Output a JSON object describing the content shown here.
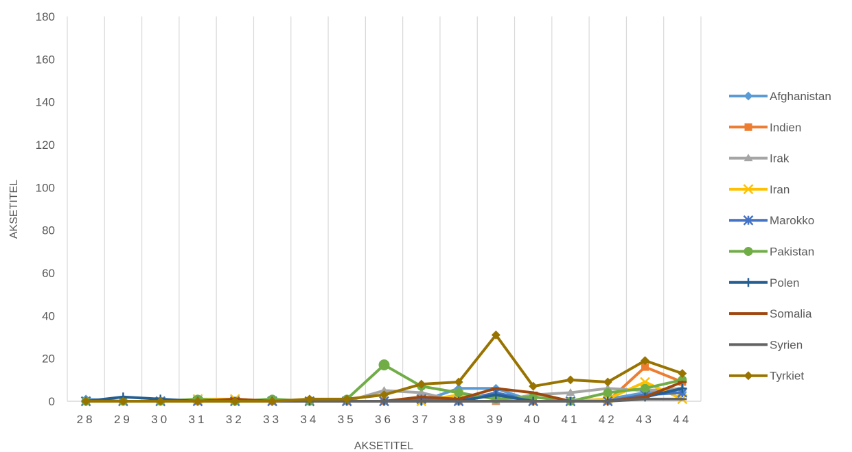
{
  "chart_data": {
    "type": "line",
    "xlabel": "AKSETITEL",
    "ylabel": "AKSETITEL",
    "ylim": [
      0,
      180
    ],
    "yticks": [
      "0",
      "20",
      "40",
      "60",
      "80",
      "100",
      "120",
      "140",
      "160",
      "180"
    ],
    "categories": [
      "28",
      "29",
      "30",
      "31",
      "32",
      "33",
      "34",
      "35",
      "36",
      "37",
      "38",
      "39",
      "40",
      "41",
      "42",
      "43",
      "44"
    ],
    "grid": "vertical",
    "legend_position": "right",
    "series": [
      {
        "name": "Afghanistan",
        "color": "#5B9BD5",
        "marker": "diamond",
        "values": [
          1,
          0,
          0,
          0,
          0,
          0,
          0,
          0,
          0,
          0,
          6,
          6,
          0,
          0,
          1,
          4,
          4
        ]
      },
      {
        "name": "Indien",
        "color": "#ED7D31",
        "marker": "square",
        "values": [
          0,
          0,
          0,
          0,
          0,
          0,
          0,
          0,
          0,
          1,
          0,
          0,
          0,
          0,
          0,
          16,
          9
        ]
      },
      {
        "name": "Irak",
        "color": "#A5A5A5",
        "marker": "triangle",
        "values": [
          0,
          0,
          0,
          0,
          0,
          0,
          0,
          0,
          5,
          4,
          0,
          0,
          3,
          4,
          6,
          5,
          6
        ]
      },
      {
        "name": "Iran",
        "color": "#FFC000",
        "marker": "x",
        "values": [
          0,
          0,
          0,
          1,
          1,
          0,
          0,
          0,
          0,
          0,
          3,
          2,
          0,
          0,
          1,
          9,
          1
        ]
      },
      {
        "name": "Marokko",
        "color": "#4472C4",
        "marker": "star",
        "values": [
          0,
          0,
          0,
          0,
          0,
          0,
          0,
          0,
          0,
          1,
          0,
          4,
          0,
          0,
          0,
          3,
          4
        ]
      },
      {
        "name": "Pakistan",
        "color": "#70AD47",
        "marker": "circle",
        "values": [
          0,
          0,
          0,
          1,
          0,
          1,
          0,
          1,
          17,
          7,
          4,
          1,
          2,
          0,
          4,
          6,
          10
        ]
      },
      {
        "name": "Polen",
        "color": "#255E91",
        "marker": "plus",
        "values": [
          0,
          2,
          1,
          0,
          0,
          0,
          0,
          0,
          0,
          0,
          0,
          3,
          0,
          0,
          0,
          2,
          6
        ]
      },
      {
        "name": "Somalia",
        "color": "#9E480E",
        "marker": "dash",
        "values": [
          0,
          0,
          0,
          0,
          1,
          0,
          0,
          0,
          0,
          2,
          1,
          6,
          4,
          0,
          0,
          2,
          9
        ]
      },
      {
        "name": "Syrien",
        "color": "#636363",
        "marker": "dash",
        "values": [
          0,
          0,
          0,
          0,
          0,
          0,
          0,
          0,
          0,
          0,
          0,
          0,
          0,
          0,
          0,
          1,
          1
        ]
      },
      {
        "name": "Tyrkiet",
        "color": "#997300",
        "marker": "diamond",
        "values": [
          0,
          0,
          0,
          0,
          0,
          0,
          1,
          1,
          3,
          8,
          9,
          31,
          7,
          10,
          9,
          19,
          13
        ]
      }
    ]
  }
}
